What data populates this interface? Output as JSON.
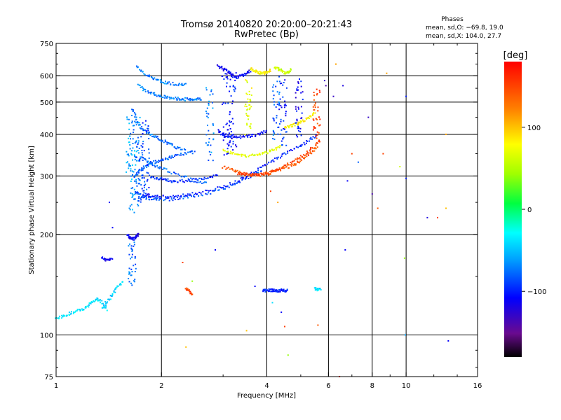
{
  "chart_data": {
    "type": "scatter",
    "title": "Tromsø 20140820 20:20:00–20:21:43",
    "subtitle": "RwPretec (Bp)",
    "xlabel": "Frequency [MHz]",
    "ylabel": "Stationary phase Virtual Height [km]",
    "x_scale": "log",
    "y_scale": "log",
    "xlim": [
      1,
      16
    ],
    "ylim": [
      75,
      750
    ],
    "x_ticks": [
      1,
      2,
      4,
      6,
      8,
      10,
      16
    ],
    "x_tick_labels": [
      "1",
      "2",
      "4",
      "6",
      "8",
      "10",
      "16"
    ],
    "y_ticks": [
      75,
      100,
      200,
      300,
      400,
      500,
      600,
      750
    ],
    "y_tick_labels": [
      "75",
      "100",
      "200",
      "300",
      "400",
      "500",
      "600",
      "750"
    ],
    "x_grid": [
      2,
      4,
      6,
      8,
      10
    ],
    "y_grid": [
      100,
      200,
      300,
      400,
      500,
      600
    ],
    "grid": true,
    "phases_legend": {
      "title": "Phases",
      "line1": "mean, sd,O: −69.8, 19.0",
      "line2": "mean, sd,X: 104.0, 27.7"
    },
    "colorbar": {
      "label": "[deg]",
      "range": [
        -180,
        180
      ],
      "ticks": [
        100,
        0,
        -100
      ],
      "tick_labels": [
        "100",
        "0",
        "−100"
      ]
    },
    "traces": [
      {
        "x": [
          1.7,
          1.8,
          1.9,
          2.0,
          2.1,
          2.25,
          2.35
        ],
        "y": [
          640,
          605,
          590,
          575,
          570,
          565,
          568
        ],
        "phase": -70
      },
      {
        "x": [
          1.72,
          1.8,
          1.9,
          2.0,
          2.1,
          2.2,
          2.3,
          2.4,
          2.5,
          2.6
        ],
        "y": [
          560,
          540,
          530,
          520,
          515,
          512,
          510,
          510,
          510,
          512
        ],
        "phase": -70
      },
      {
        "x": [
          1.65,
          1.7,
          1.75,
          1.82,
          1.9,
          2.0,
          2.1,
          2.2,
          2.35
        ],
        "y": [
          480,
          440,
          420,
          405,
          395,
          385,
          375,
          365,
          360
        ],
        "phase": -75
      },
      {
        "x": [
          1.68,
          1.72,
          1.8,
          1.9,
          2.0,
          2.1,
          2.2,
          2.35,
          2.5
        ],
        "y": [
          300,
          310,
          320,
          330,
          335,
          340,
          345,
          350,
          355
        ],
        "phase": -80
      },
      {
        "x": [
          1.7,
          1.75,
          1.8,
          1.9,
          2.0,
          2.2,
          2.4,
          2.7,
          3.0,
          3.3,
          3.6,
          3.9
        ],
        "y": [
          270,
          262,
          258,
          256,
          255,
          256,
          260,
          265,
          275,
          285,
          300,
          315
        ],
        "phase": -85
      },
      {
        "x": [
          1.78,
          1.85,
          1.95,
          2.1,
          2.3,
          2.5,
          2.8,
          3.1,
          3.4,
          3.7,
          4.0,
          4.3,
          4.6,
          5.0,
          5.3,
          5.6
        ],
        "y": [
          265,
          262,
          260,
          260,
          262,
          266,
          272,
          282,
          295,
          310,
          325,
          340,
          355,
          370,
          385,
          400
        ],
        "phase": -100
      },
      {
        "x": [
          1.75,
          1.85,
          1.95,
          2.1,
          2.3,
          2.5,
          2.7
        ],
        "y": [
          340,
          330,
          320,
          310,
          300,
          290,
          285
        ],
        "phase": -80
      },
      {
        "x": [
          1.85,
          1.95,
          2.05,
          2.15,
          2.3,
          2.5,
          2.7,
          2.9
        ],
        "y": [
          300,
          296,
          292,
          290,
          290,
          292,
          296,
          300
        ],
        "phase": -95
      },
      {
        "x": [
          2.9,
          3.0,
          3.1,
          3.2,
          3.4,
          3.6,
          3.8,
          4.0
        ],
        "y": [
          410,
          400,
          395,
          392,
          392,
          395,
          400,
          410
        ],
        "phase": -110
      },
      {
        "x": [
          3.0,
          3.2,
          3.4,
          3.6,
          3.8,
          4.0,
          4.2,
          4.4
        ],
        "y": [
          360,
          350,
          345,
          345,
          348,
          352,
          360,
          370
        ],
        "phase": 70
      },
      {
        "x": [
          3.0,
          3.2,
          3.4,
          3.6,
          3.8,
          4.0,
          4.2,
          4.5,
          4.8,
          5.0,
          5.3,
          5.6
        ],
        "y": [
          320,
          312,
          306,
          302,
          302,
          304,
          308,
          316,
          325,
          335,
          350,
          365
        ],
        "phase": 140
      },
      {
        "x": [
          3.3,
          3.5,
          3.7,
          3.9,
          4.1,
          4.3,
          4.6,
          4.9,
          5.2,
          5.5,
          5.7
        ],
        "y": [
          305,
          303,
          302,
          304,
          308,
          315,
          325,
          338,
          352,
          370,
          385
        ],
        "phase": 150
      },
      {
        "x": [
          2.9,
          3.0,
          3.1,
          3.2,
          3.3,
          3.4,
          3.5,
          3.6
        ],
        "y": [
          640,
          630,
          615,
          600,
          595,
          600,
          610,
          625
        ],
        "phase": -110
      },
      {
        "x": [
          3.6,
          3.7,
          3.8,
          3.9,
          4.0,
          4.1
        ],
        "y": [
          630,
          620,
          612,
          610,
          615,
          625
        ],
        "phase": 80
      },
      {
        "x": [
          4.2,
          4.3,
          4.4,
          4.5,
          4.6,
          4.7
        ],
        "y": [
          640,
          630,
          620,
          612,
          615,
          625
        ],
        "phase": 60
      },
      {
        "x": [
          4.5,
          4.7,
          4.9,
          5.1,
          5.3,
          5.5
        ],
        "y": [
          420,
          425,
          430,
          440,
          450,
          470
        ],
        "phase": 80
      },
      {
        "x": [
          1.0,
          1.05,
          1.1,
          1.15,
          1.2,
          1.25,
          1.3,
          1.35,
          1.4
        ],
        "y": [
          112,
          114,
          116,
          118,
          120,
          124,
          128,
          126,
          118
        ],
        "phase": -40
      },
      {
        "x": [
          1.35,
          1.4,
          1.45,
          1.5,
          1.55
        ],
        "y": [
          120,
          126,
          132,
          140,
          145
        ],
        "phase": -45
      },
      {
        "x": [
          1.6,
          1.62,
          1.65,
          1.68,
          1.7,
          1.72
        ],
        "y": [
          200,
          196,
          194,
          195,
          198,
          200
        ],
        "phase": -110
      },
      {
        "x": [
          1.35,
          1.4,
          1.45
        ],
        "y": [
          170,
          168,
          170
        ],
        "phase": -110
      },
      {
        "x": [
          3.9,
          4.0,
          4.1,
          4.2,
          4.3,
          4.4,
          4.5,
          4.6
        ],
        "y": [
          136,
          136,
          136,
          136,
          136,
          136,
          136,
          136
        ],
        "phase": -100
      },
      {
        "x": [
          5.5,
          5.6,
          5.7
        ],
        "y": [
          138,
          137,
          138
        ],
        "phase": -40
      },
      {
        "x": [
          2.35,
          2.4,
          2.45
        ],
        "y": [
          138,
          136,
          132
        ],
        "phase": 150
      }
    ],
    "columns": [
      {
        "x": 1.62,
        "y0": 290,
        "y1": 480,
        "phase": -60
      },
      {
        "x": 1.66,
        "y0": 230,
        "y1": 380,
        "phase": -60
      },
      {
        "x": 1.7,
        "y0": 250,
        "y1": 460,
        "phase": -70
      },
      {
        "x": 1.74,
        "y0": 240,
        "y1": 420,
        "phase": -80
      },
      {
        "x": 1.8,
        "y0": 270,
        "y1": 440,
        "phase": -90
      },
      {
        "x": 2.75,
        "y0": 330,
        "y1": 560,
        "phase": -70
      },
      {
        "x": 3.05,
        "y0": 340,
        "y1": 640,
        "phase": -105
      },
      {
        "x": 3.2,
        "y0": 350,
        "y1": 620,
        "phase": -100
      },
      {
        "x": 3.55,
        "y0": 380,
        "y1": 600,
        "phase": 70
      },
      {
        "x": 4.25,
        "y0": 380,
        "y1": 580,
        "phase": -80
      },
      {
        "x": 4.45,
        "y0": 360,
        "y1": 600,
        "phase": -100
      },
      {
        "x": 4.95,
        "y0": 390,
        "y1": 600,
        "phase": -110
      },
      {
        "x": 5.55,
        "y0": 380,
        "y1": 560,
        "phase": 150
      },
      {
        "x": 1.65,
        "y0": 140,
        "y1": 190,
        "phase": -80
      }
    ],
    "points": [
      {
        "x": 1.42,
        "y": 250,
        "phase": -110
      },
      {
        "x": 1.45,
        "y": 210,
        "phase": -110
      },
      {
        "x": 2.35,
        "y": 92,
        "phase": 100
      },
      {
        "x": 2.45,
        "y": 145,
        "phase": 40
      },
      {
        "x": 2.3,
        "y": 165,
        "phase": 150
      },
      {
        "x": 2.85,
        "y": 180,
        "phase": -110
      },
      {
        "x": 3.5,
        "y": 103,
        "phase": 100
      },
      {
        "x": 3.7,
        "y": 140,
        "phase": -110
      },
      {
        "x": 4.1,
        "y": 270,
        "phase": 150
      },
      {
        "x": 4.3,
        "y": 250,
        "phase": 110
      },
      {
        "x": 4.4,
        "y": 117,
        "phase": -110
      },
      {
        "x": 4.5,
        "y": 106,
        "phase": 150
      },
      {
        "x": 4.6,
        "y": 87,
        "phase": 40
      },
      {
        "x": 4.15,
        "y": 125,
        "phase": -40
      },
      {
        "x": 5.6,
        "y": 107,
        "phase": 140
      },
      {
        "x": 5.85,
        "y": 580,
        "phase": -130
      },
      {
        "x": 6.2,
        "y": 520,
        "phase": -130
      },
      {
        "x": 6.3,
        "y": 650,
        "phase": 110
      },
      {
        "x": 6.45,
        "y": 75,
        "phase": 150
      },
      {
        "x": 6.6,
        "y": 560,
        "phase": -120
      },
      {
        "x": 6.7,
        "y": 180,
        "phase": -110
      },
      {
        "x": 6.8,
        "y": 290,
        "phase": -110
      },
      {
        "x": 7.0,
        "y": 350,
        "phase": 150
      },
      {
        "x": 7.3,
        "y": 330,
        "phase": -80
      },
      {
        "x": 7.8,
        "y": 450,
        "phase": -130
      },
      {
        "x": 8.0,
        "y": 265,
        "phase": -140
      },
      {
        "x": 8.3,
        "y": 240,
        "phase": 140
      },
      {
        "x": 8.6,
        "y": 350,
        "phase": 150
      },
      {
        "x": 8.8,
        "y": 610,
        "phase": 110
      },
      {
        "x": 9.6,
        "y": 320,
        "phase": 60
      },
      {
        "x": 9.9,
        "y": 170,
        "phase": 40
      },
      {
        "x": 9.95,
        "y": 100,
        "phase": -60
      },
      {
        "x": 10.0,
        "y": 295,
        "phase": -100
      },
      {
        "x": 10.0,
        "y": 520,
        "phase": -100
      },
      {
        "x": 11.5,
        "y": 225,
        "phase": -120
      },
      {
        "x": 12.3,
        "y": 225,
        "phase": 150
      },
      {
        "x": 13.0,
        "y": 240,
        "phase": 100
      },
      {
        "x": 13.0,
        "y": 400,
        "phase": 110
      },
      {
        "x": 13.2,
        "y": 96,
        "phase": -110
      },
      {
        "x": 5.9,
        "y": 560,
        "phase": -140
      }
    ]
  }
}
